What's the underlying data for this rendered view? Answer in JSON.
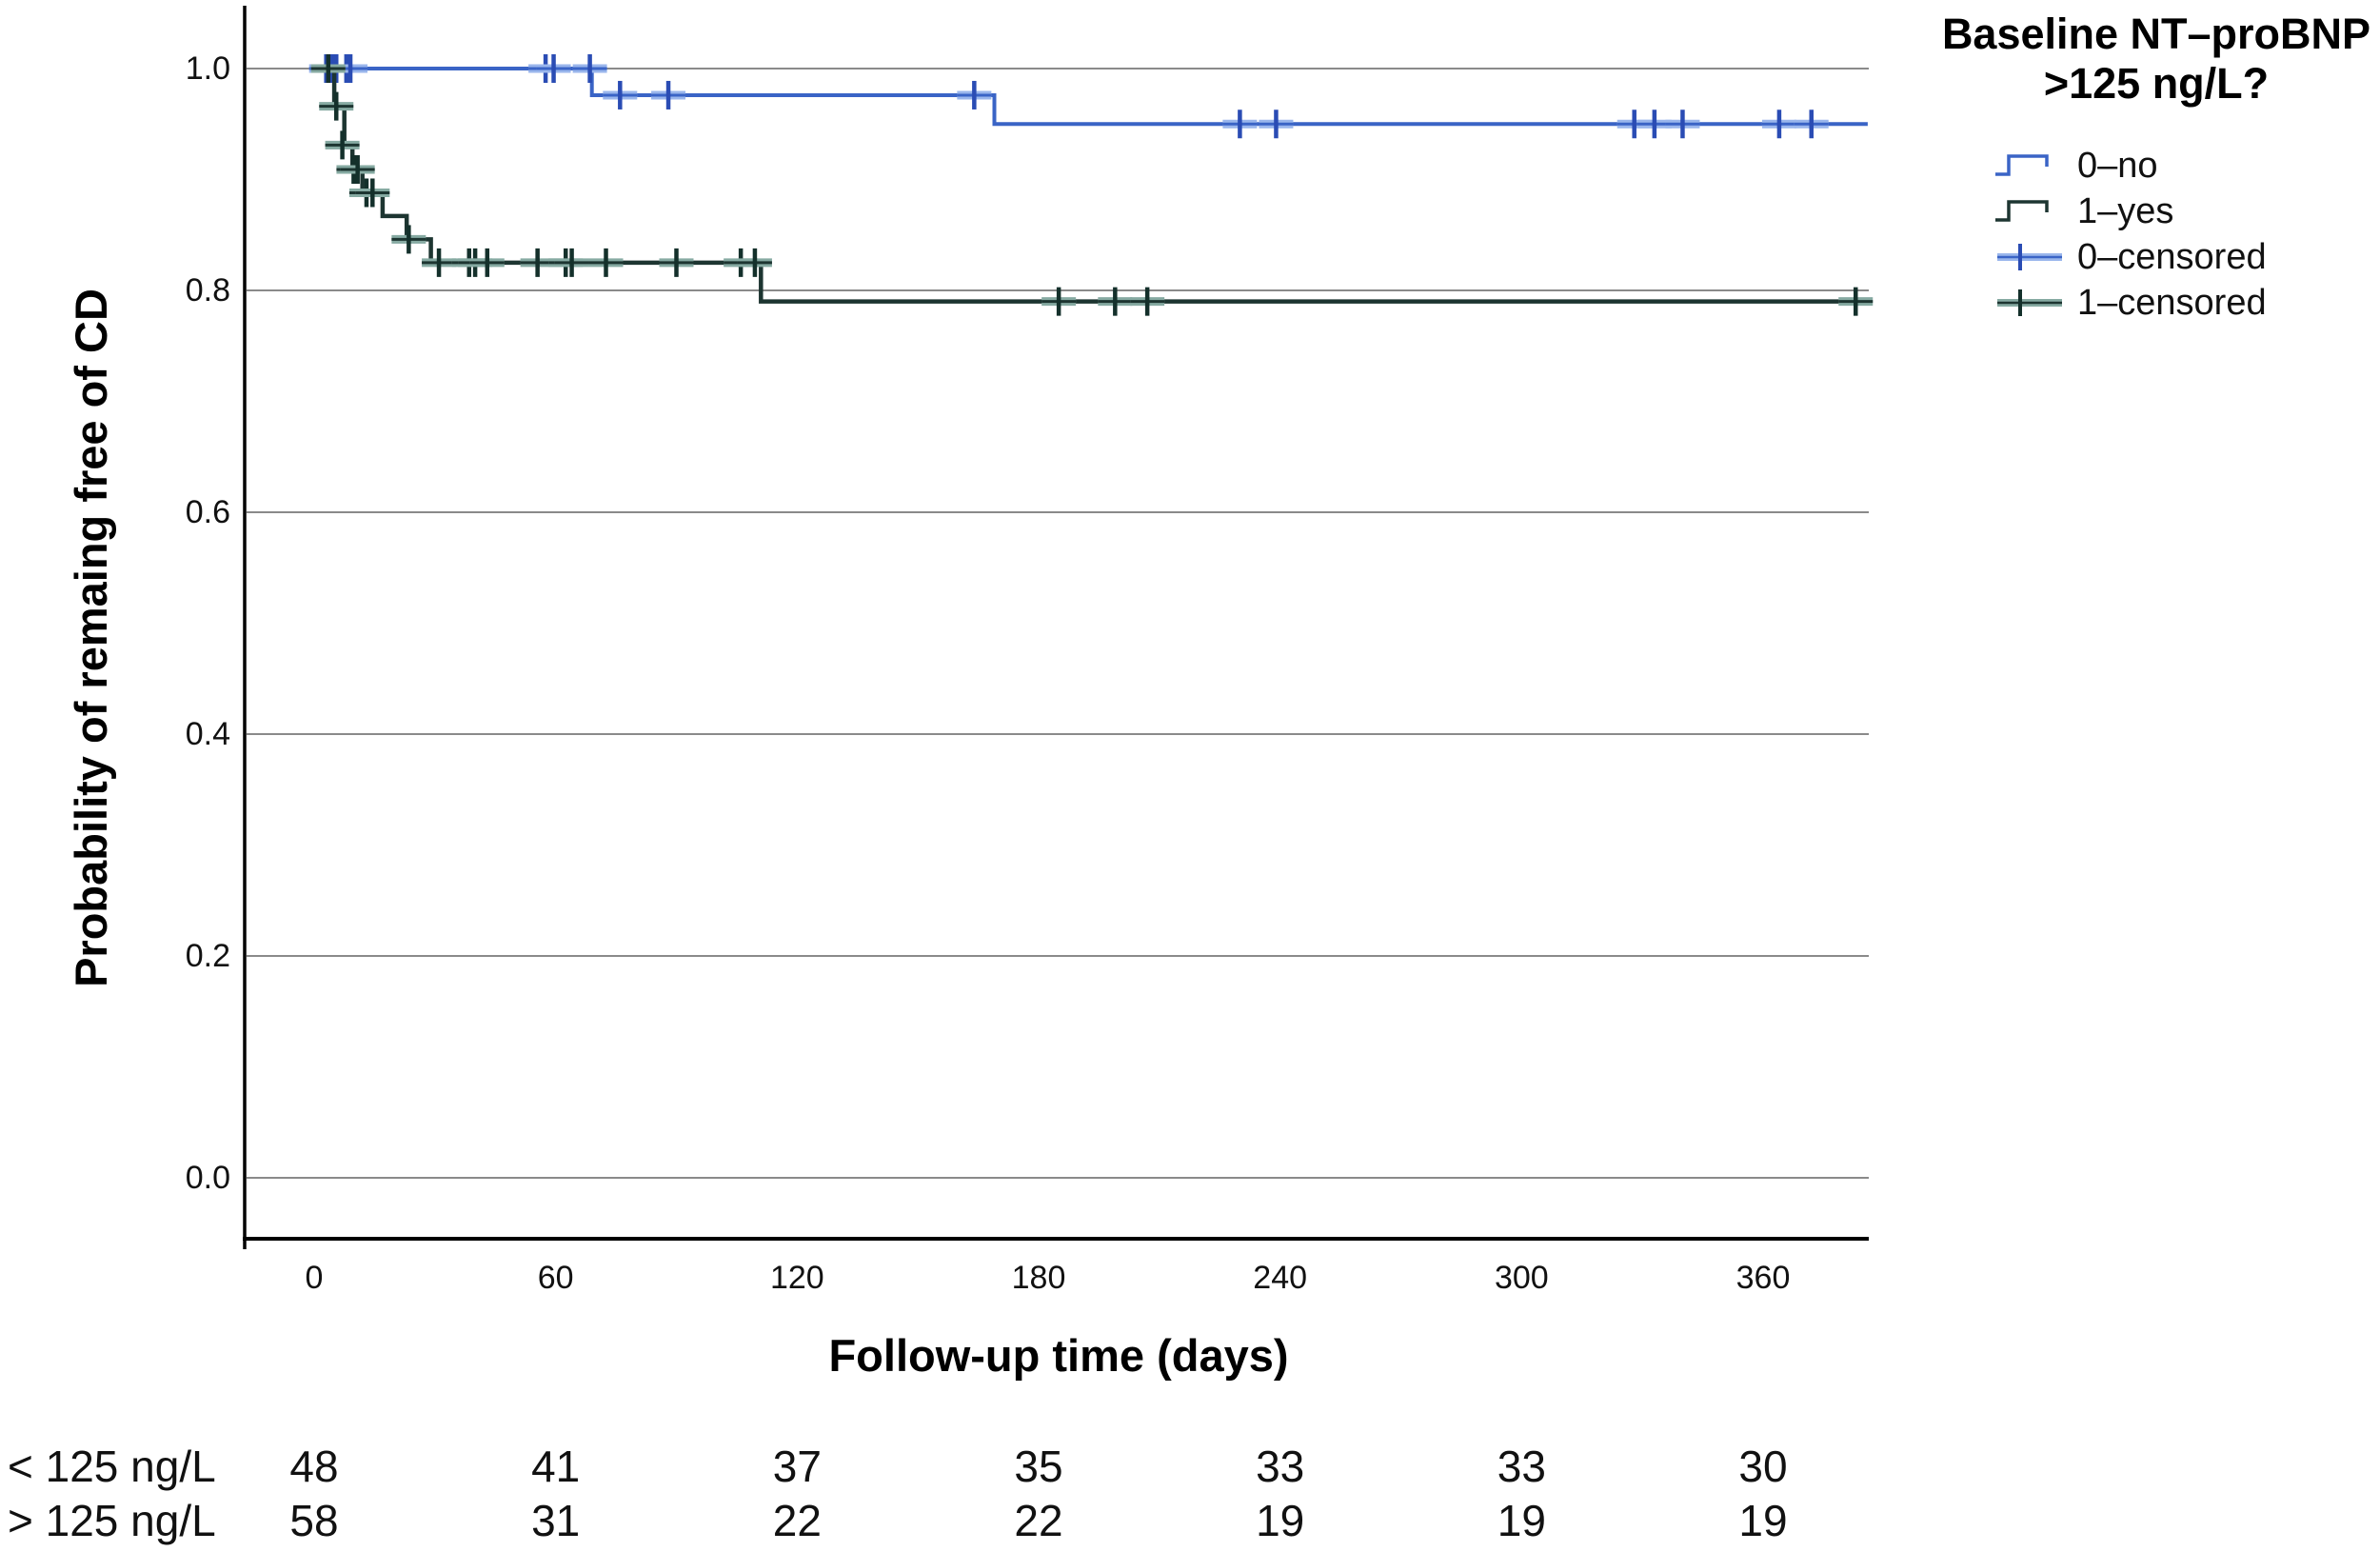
{
  "chart_data": {
    "type": "line",
    "subtype": "kaplan-meier-step",
    "title": "",
    "xlabel": "Follow-up time (days)",
    "ylabel": "Probability of remaing free of CD",
    "xticks": [
      0,
      60,
      120,
      180,
      240,
      300,
      360
    ],
    "yticks": [
      0.0,
      0.2,
      0.4,
      0.6,
      0.8,
      1.0
    ],
    "xlim": [
      -17,
      386
    ],
    "ylim": [
      -0.055,
      1.056
    ],
    "grid": "horizontal",
    "style": {
      "grid_color": "#8a8a8a",
      "axis_color": "#000000",
      "text_color": "#111111",
      "background": "#ffffff"
    },
    "legend": {
      "position": "top-right",
      "title_lines": [
        "Baseline NT–proBNP",
        ">125 ng/L?"
      ],
      "entries": [
        {
          "label": "0–no",
          "type": "step",
          "series": 0
        },
        {
          "label": "1–yes",
          "type": "step",
          "series": 1
        },
        {
          "label": "0–censored",
          "type": "censor",
          "series": 0
        },
        {
          "label": "1–censored",
          "type": "censor",
          "series": 1
        }
      ]
    },
    "series": [
      {
        "name": "0–no",
        "color": "#3a64c6",
        "censor_color": "#2a4cb4",
        "halo_color": "#9ab6ec",
        "line_width": 4,
        "steps": [
          [
            0,
            1.0
          ],
          [
            69,
            1.0
          ],
          [
            69,
            0.976
          ],
          [
            169,
            0.976
          ],
          [
            169,
            0.95
          ],
          [
            386,
            0.95
          ]
        ],
        "censors": [
          [
            3,
            1.0
          ],
          [
            4.5,
            1.0
          ],
          [
            5.5,
            1.0
          ],
          [
            8,
            1.0
          ],
          [
            9,
            1.0
          ],
          [
            57.5,
            1.0
          ],
          [
            59.5,
            1.0
          ],
          [
            68.5,
            1.0
          ],
          [
            76,
            0.976
          ],
          [
            88,
            0.976
          ],
          [
            164,
            0.976
          ],
          [
            230,
            0.95
          ],
          [
            239,
            0.95
          ],
          [
            328,
            0.95
          ],
          [
            333,
            0.95
          ],
          [
            340,
            0.95
          ],
          [
            364,
            0.95
          ],
          [
            372,
            0.95
          ]
        ]
      },
      {
        "name": "1–yes",
        "color": "#1d3531",
        "censor_color": "#14302b",
        "halo_color": "#86aaa2",
        "line_width": 4.5,
        "steps": [
          [
            0,
            1.0
          ],
          [
            5,
            1.0
          ],
          [
            5,
            0.966
          ],
          [
            7.5,
            0.966
          ],
          [
            7.5,
            0.931
          ],
          [
            9.5,
            0.931
          ],
          [
            9.5,
            0.909
          ],
          [
            12,
            0.909
          ],
          [
            12,
            0.888
          ],
          [
            17,
            0.888
          ],
          [
            17,
            0.867
          ],
          [
            23,
            0.867
          ],
          [
            23,
            0.846
          ],
          [
            29,
            0.846
          ],
          [
            29,
            0.825
          ],
          [
            111,
            0.825
          ],
          [
            111,
            0.79
          ],
          [
            386,
            0.79
          ]
        ],
        "censors": [
          [
            3.5,
            1.0
          ],
          [
            5.5,
            0.966
          ],
          [
            7,
            0.931
          ],
          [
            9.8,
            0.909
          ],
          [
            10.8,
            0.909
          ],
          [
            13,
            0.888
          ],
          [
            14.5,
            0.888
          ],
          [
            23.5,
            0.846
          ],
          [
            31,
            0.825
          ],
          [
            38.5,
            0.825
          ],
          [
            40,
            0.825
          ],
          [
            43,
            0.825
          ],
          [
            55.5,
            0.825
          ],
          [
            62.5,
            0.825
          ],
          [
            64,
            0.825
          ],
          [
            72.5,
            0.825
          ],
          [
            90,
            0.825
          ],
          [
            106,
            0.825
          ],
          [
            109.5,
            0.825
          ],
          [
            185,
            0.79
          ],
          [
            199,
            0.79
          ],
          [
            207,
            0.79
          ],
          [
            383,
            0.79
          ]
        ]
      }
    ],
    "risk_table": {
      "times": [
        0,
        60,
        120,
        180,
        240,
        300,
        360
      ],
      "rows": [
        {
          "label": "< 125 ng/L",
          "values": [
            48,
            41,
            37,
            35,
            33,
            33,
            30
          ]
        },
        {
          "label": "> 125 ng/L",
          "values": [
            58,
            31,
            22,
            22,
            19,
            19,
            19
          ]
        }
      ]
    }
  }
}
